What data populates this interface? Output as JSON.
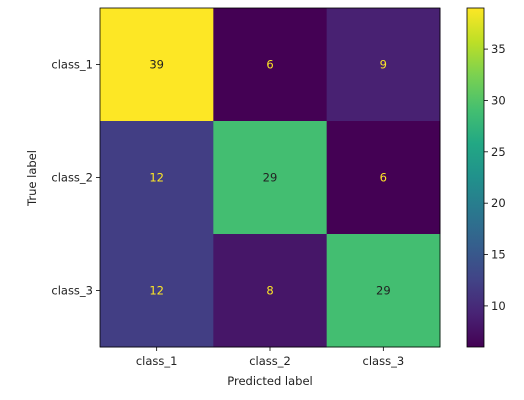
{
  "chart_data": {
    "type": "heatmap",
    "x_categories": [
      "class_1",
      "class_2",
      "class_3"
    ],
    "y_categories": [
      "class_1",
      "class_2",
      "class_3"
    ],
    "matrix": [
      [
        39,
        6,
        9
      ],
      [
        12,
        29,
        6
      ],
      [
        12,
        8,
        29
      ]
    ],
    "xlabel": "Predicted label",
    "ylabel": "True label",
    "colorbar": {
      "min": 6,
      "max": 39,
      "ticks": [
        10,
        15,
        20,
        25,
        30,
        35
      ]
    },
    "colors": {
      "low": "#440154",
      "high": "#fde725",
      "light_text": "#fde725",
      "dark_text": "#222222"
    }
  }
}
